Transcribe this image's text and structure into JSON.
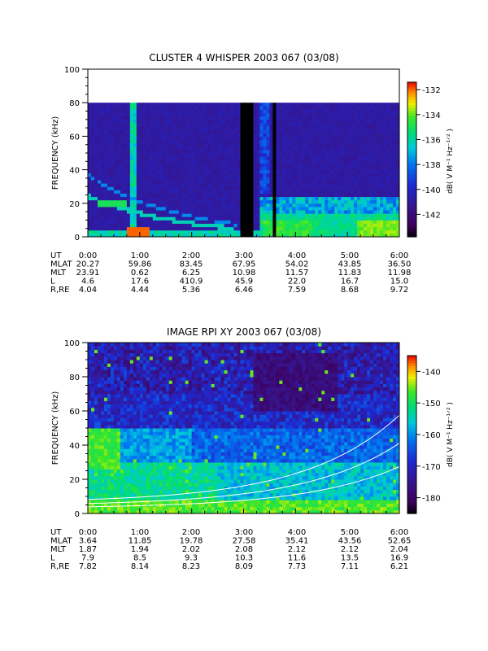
{
  "chart_data": [
    {
      "type": "heatmap",
      "title": "CLUSTER 4 WHISPER 2003 067 (03/08)",
      "ylabel": "FREQUENCY (kHz)",
      "ylim": [
        0,
        100
      ],
      "yticks": [
        "0",
        "20",
        "40",
        "60",
        "80",
        "100"
      ],
      "xlim": [
        "0:00",
        "6:00"
      ],
      "colorbar": {
        "label": "dB( V M⁻¹ Hz⁻¹ᐟ² )",
        "label_plain": "dB( V M-1 Hz-1/2)",
        "range": [
          -143.8,
          -131.4
        ],
        "ticks": [
          "-132",
          "-134",
          "-136",
          "-138",
          "-140",
          "-142"
        ],
        "tick_values": [
          -132,
          -134,
          -136,
          -138,
          -140,
          -142
        ],
        "colormap": "rainbow-black-purple-blue-cyan-green-yellow-red"
      },
      "data_coverage_max_khz": 80,
      "ephemeris_rows": [
        {
          "label": "UT",
          "values": [
            "0:00",
            "1:00",
            "2:00",
            "3:00",
            "4:00",
            "5:00",
            "6:00"
          ]
        },
        {
          "label": "MLAT",
          "values": [
            "20.27",
            "59.86",
            "83.45",
            "67.95",
            "54.02",
            "43.85",
            "36.50"
          ]
        },
        {
          "label": "MLT",
          "values": [
            "23.91",
            "0.62",
            "6.25",
            "10.98",
            "11.57",
            "11.83",
            "11.98"
          ]
        },
        {
          "label": "L",
          "values": [
            "4.6",
            "17.6",
            "410.9",
            "45.9",
            "22.0",
            "16.7",
            "15.0"
          ]
        },
        {
          "label": "R,RE",
          "values": [
            "4.04",
            "4.44",
            "5.36",
            "6.46",
            "7.59",
            "8.68",
            "9.72"
          ]
        }
      ]
    },
    {
      "type": "heatmap",
      "title": "IMAGE RPI XY 2003 067 (03/08)",
      "ylabel": "FREQUENCY (kHz)",
      "ylim": [
        0,
        100
      ],
      "yticks": [
        "0",
        "20",
        "40",
        "60",
        "80",
        "100"
      ],
      "xlim": [
        "0:00",
        "6:00"
      ],
      "colorbar": {
        "label": "dB( V M⁻¹ Hz⁻¹ᐟ² )",
        "label_plain": "dB( V M-1 Hz-1/2)",
        "range": [
          -185,
          -135
        ],
        "ticks": [
          "-140",
          "-150",
          "-160",
          "-170",
          "-180"
        ],
        "tick_values": [
          -140,
          -150,
          -160,
          -170,
          -180
        ],
        "colormap": "rainbow-black-purple-blue-cyan-green-yellow-red"
      },
      "data_coverage_max_khz": 100,
      "ephemeris_rows": [
        {
          "label": "UT",
          "values": [
            "0:00",
            "1:00",
            "2:00",
            "3:00",
            "4:00",
            "5:00",
            "6:00"
          ]
        },
        {
          "label": "MLAT",
          "values": [
            "3.64",
            "11.85",
            "19.78",
            "27.58",
            "35.41",
            "43.56",
            "52.65"
          ]
        },
        {
          "label": "MLT",
          "values": [
            "1.87",
            "1.94",
            "2.02",
            "2.08",
            "2.12",
            "2.12",
            "2.04"
          ]
        },
        {
          "label": "L",
          "values": [
            "7.9",
            "8.5",
            "9.3",
            "10.3",
            "11.6",
            "13.5",
            "16.9"
          ]
        },
        {
          "label": "R,RE",
          "values": [
            "7.82",
            "8.14",
            "8.23",
            "8.09",
            "7.73",
            "7.11",
            "6.21"
          ]
        }
      ]
    }
  ]
}
